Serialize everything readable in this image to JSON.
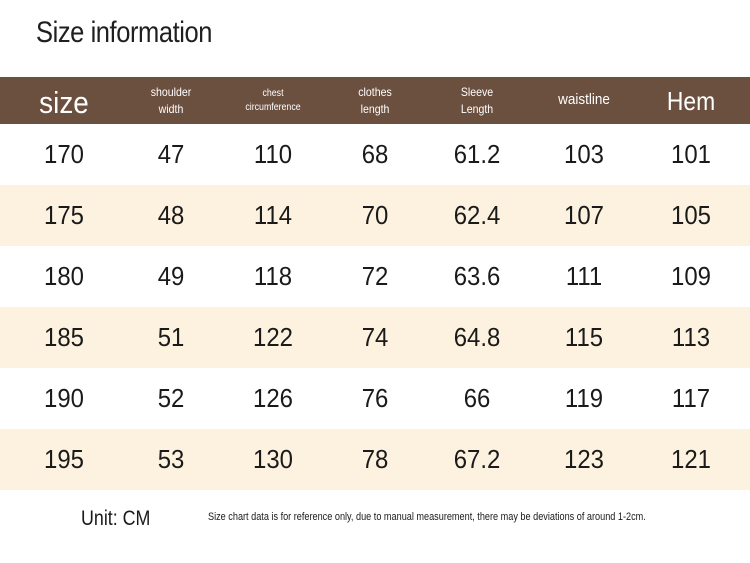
{
  "title": "Size information",
  "headers": [
    "size",
    "shoulder\nwidth",
    "chest\ncircumference",
    "clothes\nlength",
    "Sleeve\nLength",
    "waistline",
    "Hem"
  ],
  "rows": [
    [
      "170",
      "47",
      "110",
      "68",
      "61.2",
      "103",
      "101"
    ],
    [
      "175",
      "48",
      "114",
      "70",
      "62.4",
      "107",
      "105"
    ],
    [
      "180",
      "49",
      "118",
      "72",
      "63.6",
      "111",
      "109"
    ],
    [
      "185",
      "51",
      "122",
      "74",
      "64.8",
      "115",
      "113"
    ],
    [
      "190",
      "52",
      "126",
      "76",
      "66",
      "119",
      "117"
    ],
    [
      "195",
      "53",
      "130",
      "78",
      "67.2",
      "123",
      "121"
    ]
  ],
  "unit": "Unit: CM",
  "note": "Size chart data is for reference only, due to manual measurement, there may be deviations of around 1-2cm.",
  "colors": {
    "header_bg": "#6b4f3f",
    "stripe_bg": "#fcf2df"
  }
}
